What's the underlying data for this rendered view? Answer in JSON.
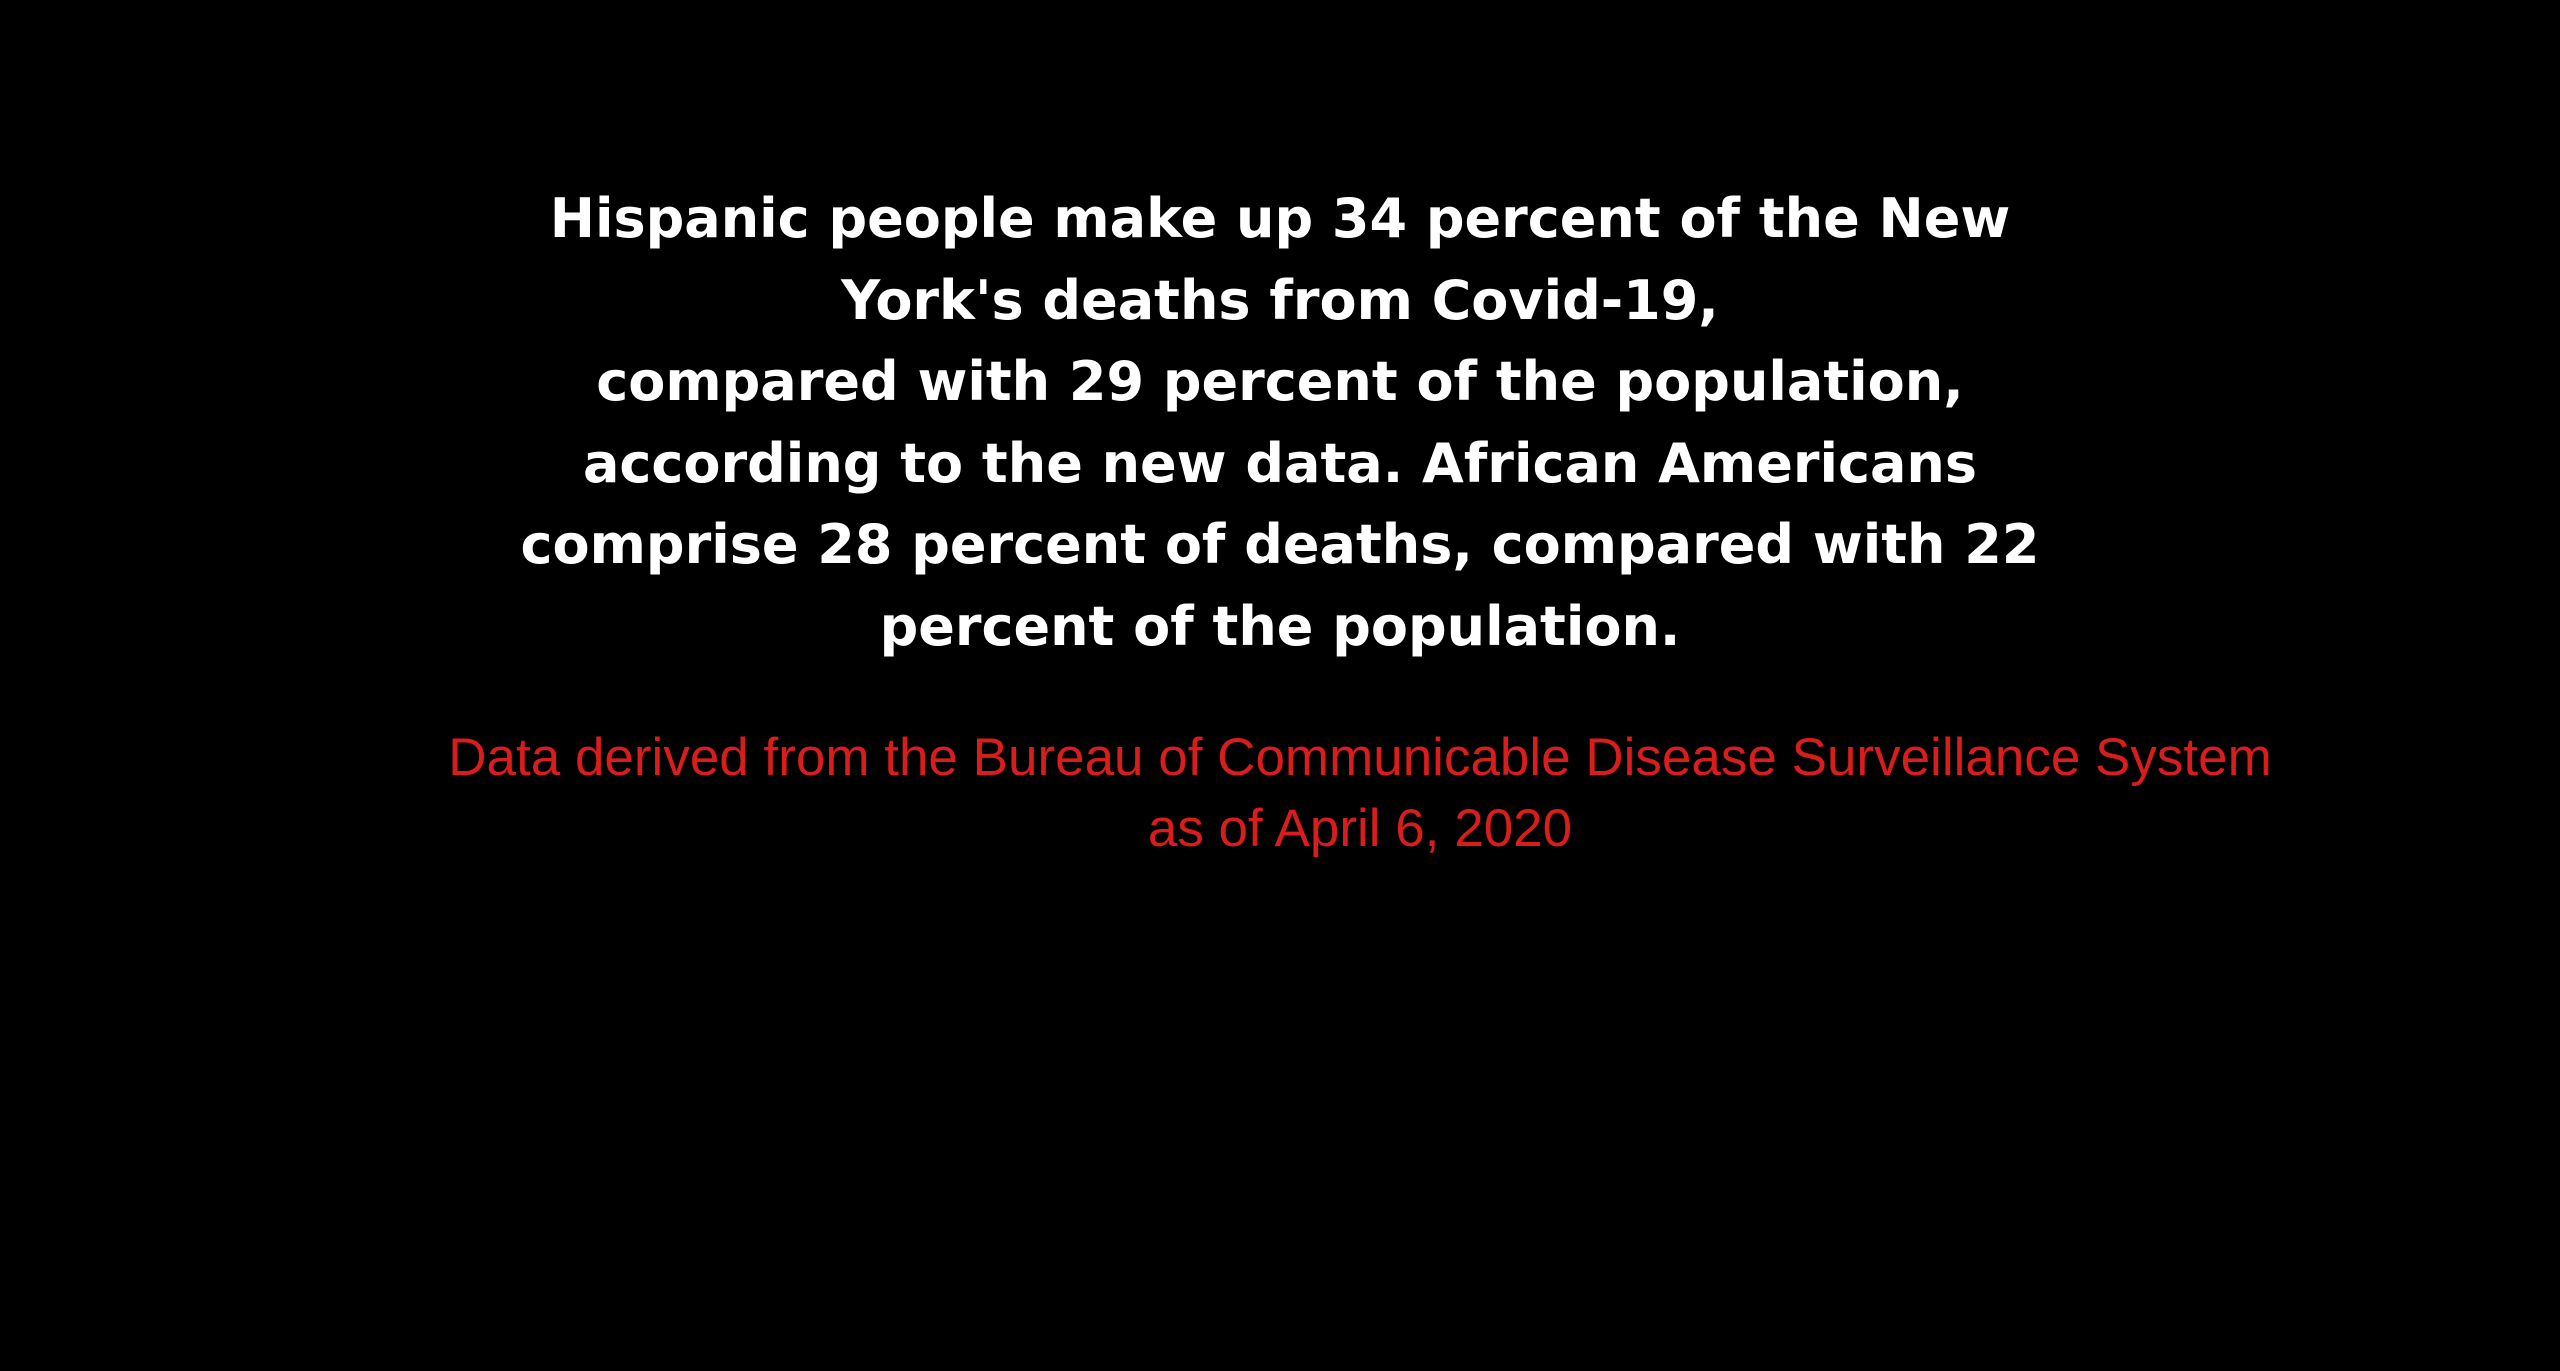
{
  "headline": {
    "lines": [
      "Hispanic people make up 34 percent of the New",
      "York's deaths from Covid-19,",
      "compared with 29 percent of the population,",
      "according to the new data. African Americans",
      "comprise 28 percent of deaths, compared with 22",
      "percent of the population."
    ]
  },
  "source": {
    "lines": [
      "Data derived from the Bureau of Communicable Disease Surveillance System",
      "as of April 6, 2020"
    ]
  },
  "colors": {
    "background": "#000000",
    "headline": "#ffffff",
    "source": "#d91c1c"
  }
}
